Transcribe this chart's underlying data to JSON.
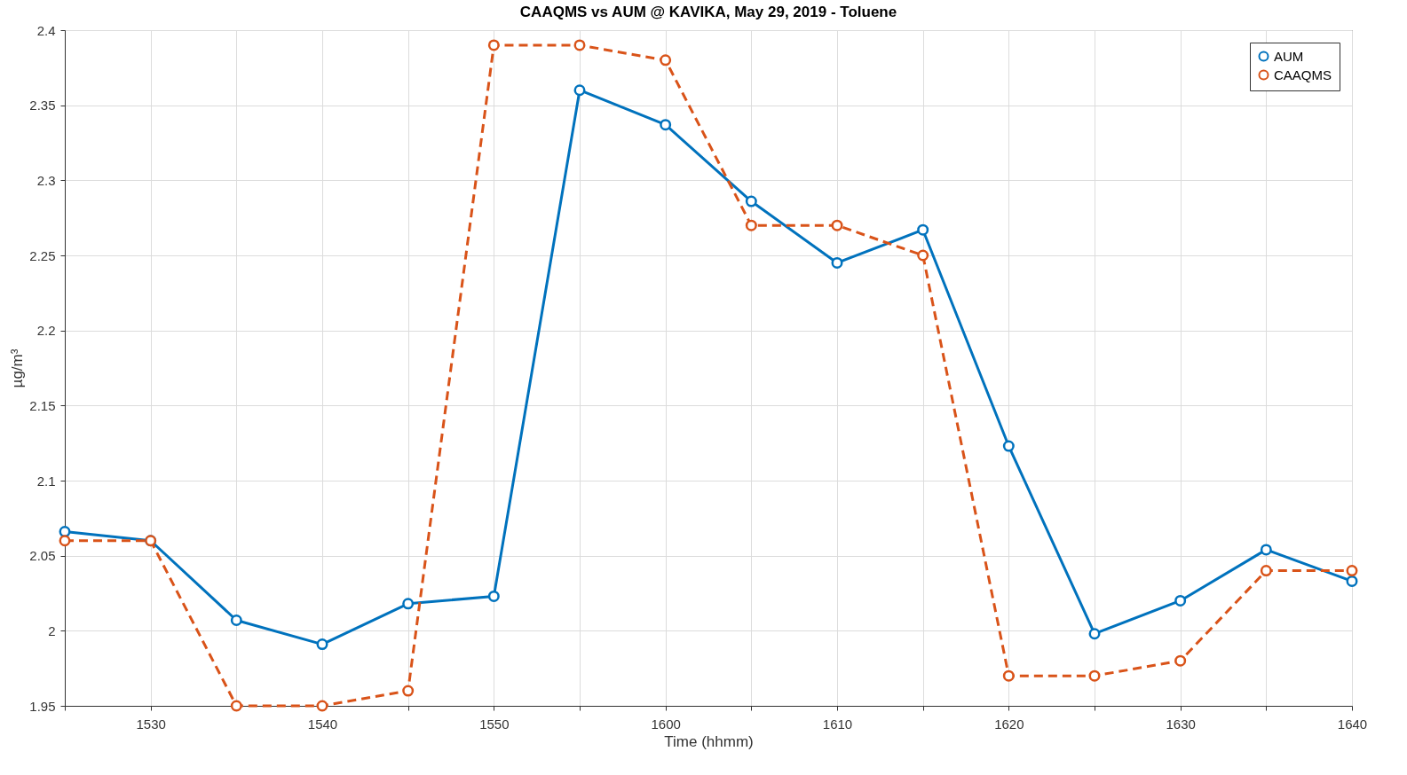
{
  "chart_data": {
    "type": "line",
    "title": "CAAQMS vs AUM @ KAVIKA, May 29, 2019 - Toluene",
    "xlabel": "Time (hhmm)",
    "ylabel": "µg/m³",
    "categories": [
      null,
      "1530",
      null,
      "1540",
      null,
      "1550",
      null,
      "1600",
      null,
      "1610",
      null,
      "1620",
      null,
      "1630",
      null,
      "1640"
    ],
    "series": [
      {
        "name": "AUM",
        "color": "#0072bd",
        "line_style": "solid",
        "values": [
          2.066,
          2.06,
          2.007,
          1.991,
          2.018,
          2.023,
          2.36,
          2.337,
          2.286,
          2.245,
          2.267,
          2.123,
          1.998,
          2.02,
          2.054,
          2.033
        ]
      },
      {
        "name": "CAAQMS",
        "color": "#d95319",
        "line_style": "dashed",
        "values": [
          2.06,
          2.06,
          1.95,
          1.95,
          1.96,
          2.39,
          2.39,
          2.38,
          2.27,
          2.27,
          2.25,
          1.97,
          1.97,
          1.98,
          2.04,
          2.04
        ]
      }
    ],
    "ylim": [
      1.95,
      2.4
    ],
    "yticks": [
      1.95,
      2,
      2.05,
      2.1,
      2.15,
      2.2,
      2.25,
      2.3,
      2.35,
      2.4
    ],
    "grid": true,
    "legend": "top right",
    "marker": "circle"
  }
}
